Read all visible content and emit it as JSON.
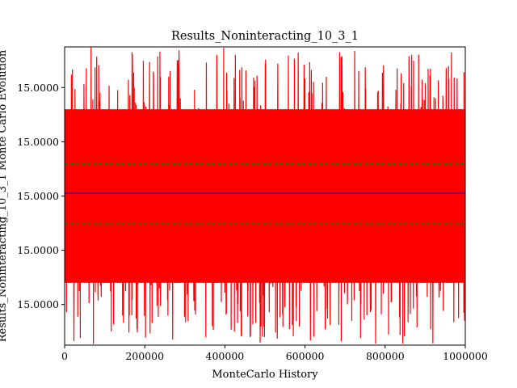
{
  "chart_data": {
    "type": "line",
    "title": "Results_Noninteracting_10_3_1",
    "xlabel": "MonteCarlo History",
    "ylabel": "Results_Noninteracting_10_3_1 Monte Carlo Evolution",
    "xlim": [
      0,
      1000000
    ],
    "ylim": [
      -5.5,
      5.5
    ],
    "x_ticks": [
      0,
      200000,
      400000,
      600000,
      800000,
      1000000
    ],
    "x_tick_labels": [
      "0",
      "200000",
      "400000",
      "600000",
      "800000",
      "1000000"
    ],
    "y_ticks": [
      4,
      2,
      0,
      -2,
      -4
    ],
    "y_tick_labels": [
      "15.0000",
      "15.0000",
      "15.0000",
      "15.0000",
      "15.0000"
    ],
    "grid": false,
    "series": [
      {
        "role": "trace",
        "color": "#ff0000",
        "x_range": [
          0,
          1000000
        ],
        "band_typical": [
          -3.2,
          3.2
        ],
        "envelope_max": 5.5,
        "envelope_min": -5.5
      },
      {
        "role": "mean",
        "color": "#0000ff",
        "style": "solid",
        "y": 0.1
      },
      {
        "role": "mean_plus_sigma",
        "color": "#008000",
        "style": "dashed",
        "y": 1.2
      },
      {
        "role": "mean_minus_sigma",
        "color": "#008000",
        "style": "dashed",
        "y": -1.0
      }
    ]
  }
}
